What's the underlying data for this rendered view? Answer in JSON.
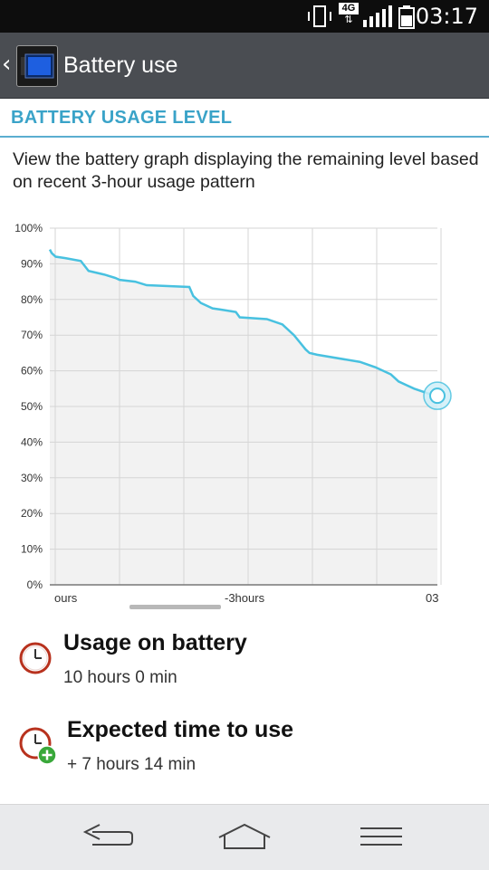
{
  "status_bar": {
    "time": "03:17",
    "network": "4G"
  },
  "header": {
    "title": "Battery use"
  },
  "section": {
    "title": "BATTERY USAGE LEVEL"
  },
  "description": "View the battery graph displaying the remaining level based on recent 3-hour usage pattern",
  "chart_data": {
    "type": "area",
    "y_tick_labels": [
      "100%",
      "90%",
      "80%",
      "70%",
      "60%",
      "50%",
      "40%",
      "30%",
      "20%",
      "10%",
      "0%"
    ],
    "x_tick_labels": [
      "ours",
      "-3hours",
      "03"
    ],
    "ylim": [
      0,
      100
    ],
    "x": [
      0,
      0.5,
      1.5,
      4,
      8,
      10,
      14,
      17,
      18,
      22,
      25,
      36,
      37,
      39,
      42,
      44,
      48,
      49,
      56,
      60,
      63,
      66,
      67,
      69,
      80,
      84,
      88,
      90,
      92,
      94,
      98,
      100
    ],
    "values": [
      94,
      93,
      92,
      91.6,
      90.8,
      88,
      87,
      86,
      85.5,
      85,
      84,
      83.5,
      81,
      79,
      77.5,
      77.2,
      76.5,
      75,
      74.5,
      73,
      70,
      66,
      65,
      64.5,
      62.5,
      61,
      59,
      57,
      56,
      55,
      53.5,
      53
    ],
    "grid": true,
    "current_marker": true,
    "colors": {
      "line": "#48c1e0",
      "fill": "#f2f2f2",
      "grid": "#d5d5d5"
    }
  },
  "usage": {
    "label": "Usage on battery",
    "value": "10 hours 0 min"
  },
  "expected": {
    "label": "Expected time to use",
    "value": "+ 7 hours 14 min"
  },
  "nav": {
    "back": "back-icon",
    "home": "home-icon",
    "menu": "menu-icon"
  }
}
